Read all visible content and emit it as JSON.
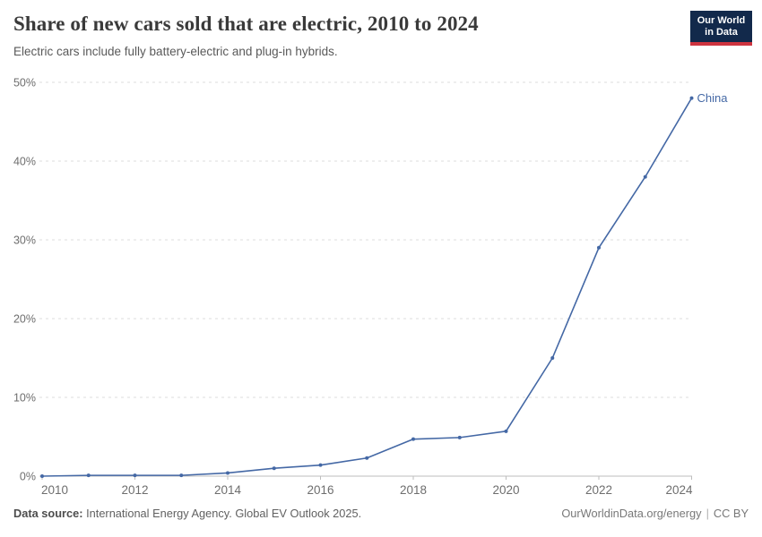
{
  "header": {
    "title": "Share of new cars sold that are electric, 2010 to 2024",
    "subtitle": "Electric cars include fully battery-electric and plug-in hybrids.",
    "logo": {
      "line1": "Our World",
      "line2": "in Data"
    }
  },
  "chart_data": {
    "type": "line",
    "title": "Share of new cars sold that are electric, 2010 to 2024",
    "x": [
      2010,
      2011,
      2012,
      2013,
      2014,
      2015,
      2016,
      2017,
      2018,
      2019,
      2020,
      2021,
      2022,
      2023,
      2024
    ],
    "series": [
      {
        "name": "China",
        "color": "#4468a5",
        "values": [
          0.0,
          0.1,
          0.1,
          0.1,
          0.4,
          1.0,
          1.4,
          2.3,
          4.7,
          4.9,
          5.7,
          15.0,
          29.0,
          38.0,
          48.0
        ]
      }
    ],
    "xlabel": "",
    "ylabel": "",
    "xlim": [
      2010,
      2024
    ],
    "ylim": [
      0,
      50
    ],
    "x_ticks": [
      2010,
      2012,
      2014,
      2016,
      2018,
      2020,
      2022,
      2024
    ],
    "y_ticks": [
      0,
      10,
      20,
      30,
      40,
      50
    ],
    "y_tick_suffix": "%",
    "grid": "horizontal-dashed",
    "legend": "end-of-line-label",
    "markers": true
  },
  "footer": {
    "source_label": "Data source:",
    "source_text": " International Energy Agency. Global EV Outlook 2025.",
    "link": "OurWorldinData.org/energy",
    "separator": "|",
    "license": "CC BY"
  },
  "colors": {
    "line": "#4468a5",
    "grid": "#dcdcdc",
    "axis": "#bdbdbd",
    "tick_label": "#6e6e6e",
    "title": "#3a3a3a",
    "logo_bg": "#12294b",
    "logo_accent": "#ce343f"
  }
}
